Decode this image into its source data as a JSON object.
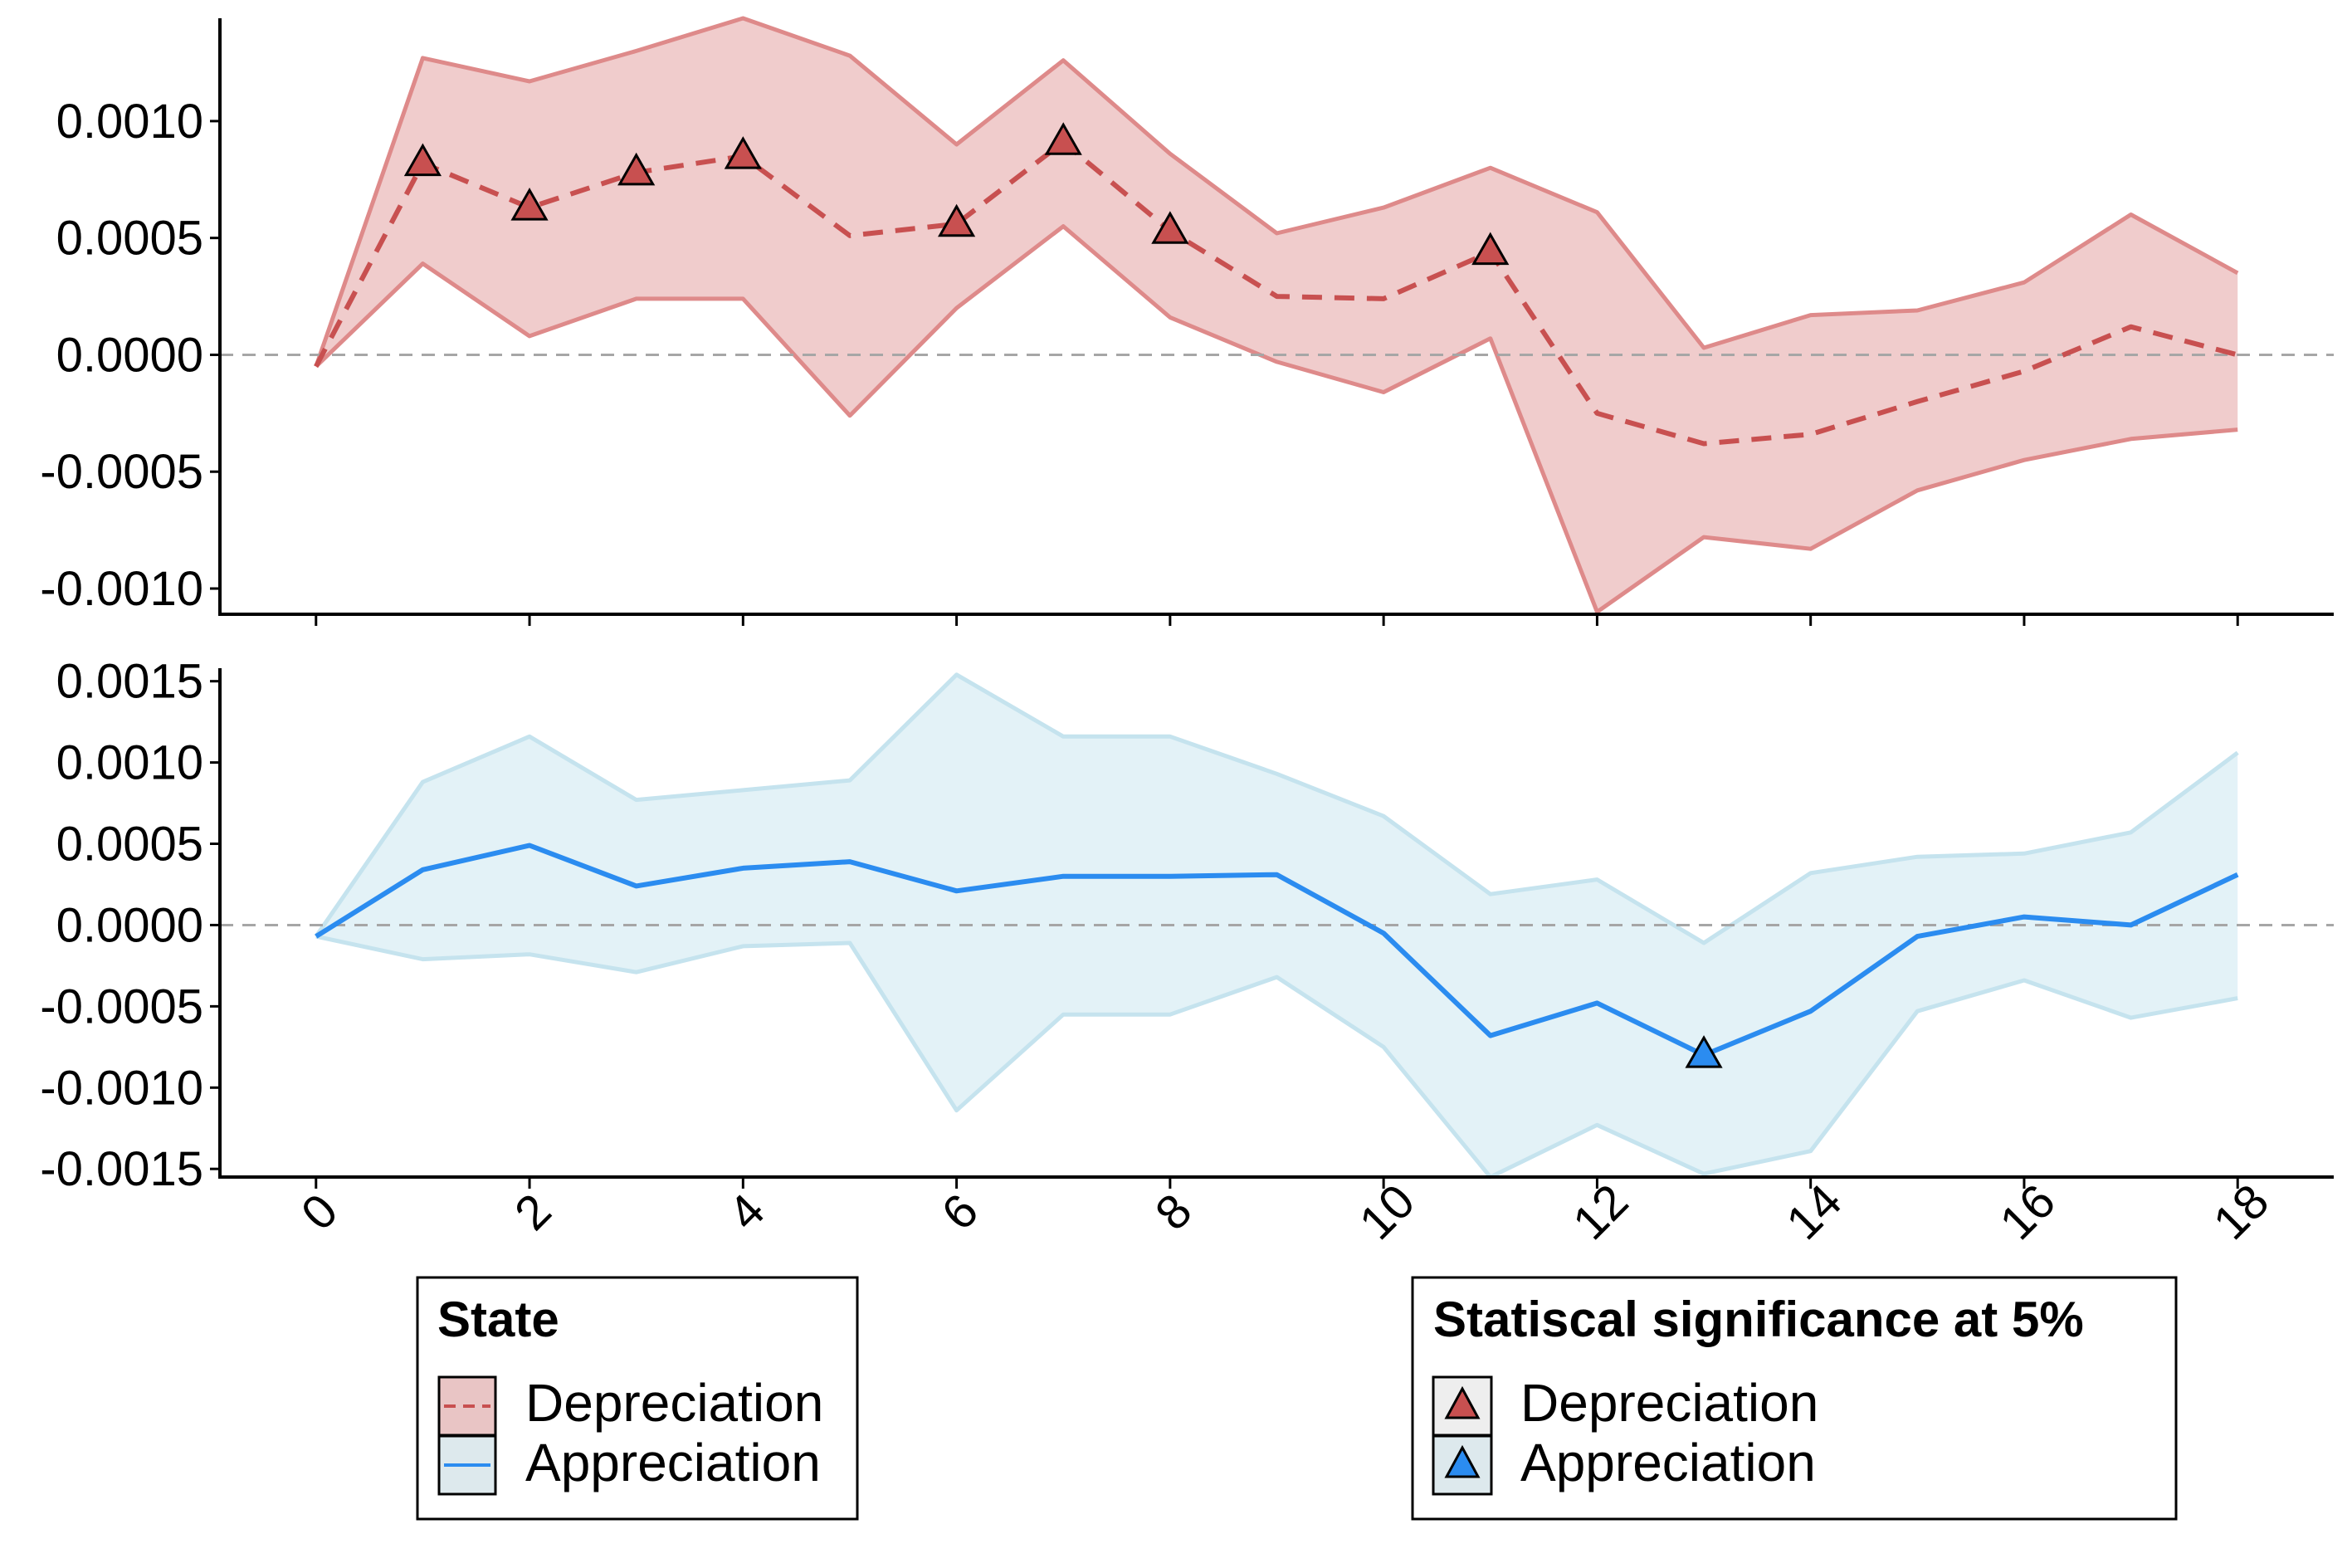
{
  "chart_data": [
    {
      "type": "line",
      "panel": "top",
      "ylim": [
        -0.00111,
        0.00144
      ],
      "yticks": [
        -0.001,
        -0.0005,
        0.0,
        0.0005,
        0.001
      ],
      "ytick_labels": [
        "-0.0010",
        "-0.0005",
        "0.0000",
        "0.0005",
        "0.0010"
      ],
      "xlim": [
        -0.9,
        18.9
      ],
      "reference_line": 0,
      "series": [
        {
          "name": "Depreciation",
          "x": [
            0,
            1,
            2,
            3,
            4,
            5,
            6,
            7,
            8,
            9,
            10,
            11,
            12,
            13,
            14,
            15,
            16,
            17,
            18
          ],
          "values": [
            -5e-05,
            0.00082,
            0.00063,
            0.00078,
            0.00085,
            0.00051,
            0.00056,
            0.00091,
            0.00053,
            0.00025,
            0.00024,
            0.00044,
            -0.00025,
            -0.00038,
            -0.00034,
            -0.0002,
            -7e-05,
            0.00012,
            0.0
          ],
          "upper": [
            -5e-05,
            0.00127,
            0.00117,
            0.0013,
            0.00144,
            0.00128,
            0.0009,
            0.00126,
            0.00086,
            0.00052,
            0.00063,
            0.0008,
            0.00061,
            3e-05,
            0.00017,
            0.00019,
            0.00031,
            0.0006,
            0.00035
          ],
          "lower": [
            -5e-05,
            0.00039,
            8e-05,
            0.00024,
            0.00024,
            -0.00026,
            0.0002,
            0.00055,
            0.00016,
            -3e-05,
            -0.00016,
            7e-05,
            -0.0011,
            -0.00078,
            -0.00083,
            -0.00058,
            -0.00045,
            -0.00036,
            -0.00032
          ],
          "significant": [
            false,
            true,
            true,
            true,
            true,
            false,
            true,
            true,
            true,
            false,
            false,
            true,
            false,
            false,
            false,
            false,
            false,
            false,
            false
          ],
          "color": "#c85050",
          "band_color": "#f0cccc",
          "band_edge_color": "#de8a8a"
        }
      ]
    },
    {
      "type": "line",
      "panel": "bottom",
      "ylim": [
        -0.00155,
        0.00158
      ],
      "yticks": [
        -0.0015,
        -0.001,
        -0.0005,
        0.0,
        0.0005,
        0.001,
        0.0015
      ],
      "ytick_labels": [
        "-0.0015",
        "-0.0010",
        "-0.0005",
        "0.0000",
        "0.0005",
        "0.0010",
        "0.0015"
      ],
      "xlim": [
        -0.9,
        18.9
      ],
      "xticks": [
        0,
        2,
        4,
        6,
        8,
        10,
        12,
        14,
        16,
        18
      ],
      "xtick_labels": [
        "0",
        "2",
        "4",
        "6",
        "8",
        "10",
        "12",
        "14",
        "16",
        "18"
      ],
      "reference_line": 0,
      "series": [
        {
          "name": "Appreciation",
          "x": [
            0,
            1,
            2,
            3,
            4,
            5,
            6,
            7,
            8,
            9,
            10,
            11,
            12,
            13,
            14,
            15,
            16,
            17,
            18
          ],
          "values": [
            -7e-05,
            0.00034,
            0.00049,
            0.00024,
            0.00035,
            0.00039,
            0.00021,
            0.0003,
            0.0003,
            0.00031,
            -5e-05,
            -0.00068,
            -0.00048,
            -0.0008,
            -0.00053,
            -7e-05,
            5e-05,
            0.0,
            0.00031
          ],
          "upper": [
            -7e-05,
            0.00088,
            0.00116,
            0.00077,
            0.00083,
            0.00089,
            0.00154,
            0.00116,
            0.00116,
            0.00093,
            0.00067,
            0.00019,
            0.00028,
            -0.00011,
            0.00032,
            0.00042,
            0.00044,
            0.00057,
            0.00106
          ],
          "lower": [
            -7e-05,
            -0.00021,
            -0.00018,
            -0.00029,
            -0.00013,
            -0.00011,
            -0.00114,
            -0.00055,
            -0.00055,
            -0.00032,
            -0.00075,
            -0.00155,
            -0.00123,
            -0.00153,
            -0.00139,
            -0.00053,
            -0.00034,
            -0.00057,
            -0.00045
          ],
          "significant": [
            false,
            false,
            false,
            false,
            false,
            false,
            false,
            false,
            false,
            false,
            false,
            false,
            false,
            true,
            false,
            false,
            false,
            false,
            false
          ],
          "color": "#2b8cf0",
          "band_color": "#e3f2f7",
          "band_edge_color": "#c5e3ee"
        }
      ]
    }
  ],
  "legend_state": {
    "title": "State",
    "items": [
      {
        "label": "Depreciation"
      },
      {
        "label": "Appreciation"
      }
    ]
  },
  "legend_significance": {
    "title": "Statiscal significance at 5%",
    "items": [
      {
        "label": "Depreciation",
        "color": "#c85050"
      },
      {
        "label": "Appreciation",
        "color": "#2b8cf0"
      }
    ]
  }
}
